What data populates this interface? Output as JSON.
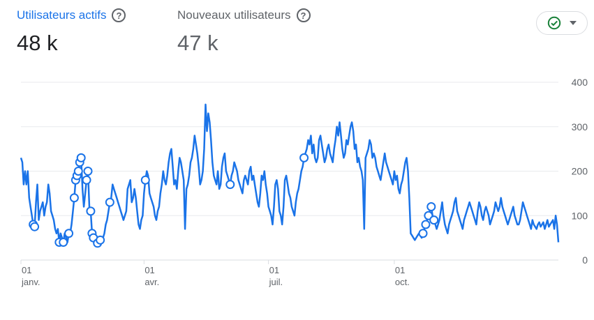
{
  "metrics": {
    "active": {
      "title": "Utilisateurs actifs",
      "value": "48 k"
    },
    "new": {
      "title": "Nouveaux utilisateurs",
      "value": "47 k"
    },
    "help_glyph": "?"
  },
  "status_button": {
    "icon": "check-circle-icon",
    "color": "#188038",
    "dropdown": "caret-down-icon"
  },
  "chart_data": {
    "type": "line",
    "ylim": [
      0,
      400
    ],
    "y_ticks": [
      "0",
      "100",
      "200",
      "300",
      "400"
    ],
    "x_ticks": [
      {
        "day": "01",
        "month": "janv.",
        "index": 0
      },
      {
        "day": "01",
        "month": "avr.",
        "index": 90
      },
      {
        "day": "01",
        "month": "juil.",
        "index": 181
      },
      {
        "day": "01",
        "month": "oct.",
        "index": 273
      }
    ],
    "color": "#1a73e8",
    "series": [
      {
        "values": [
          230,
          220,
          170,
          200,
          170,
          200,
          140,
          120,
          100,
          80,
          75,
          130,
          170,
          90,
          110,
          120,
          130,
          100,
          120,
          130,
          170,
          150,
          110,
          100,
          90,
          70,
          60,
          70,
          40,
          60,
          50,
          40,
          60,
          50,
          40,
          60,
          60,
          80,
          110,
          140,
          180,
          190,
          200,
          220,
          230,
          160,
          120,
          150,
          180,
          200,
          120,
          110,
          60,
          50,
          40,
          45,
          38,
          50,
          45,
          40,
          50,
          60,
          80,
          90,
          110,
          130,
          140,
          170,
          160,
          150,
          140,
          130,
          120,
          110,
          100,
          90,
          100,
          110,
          160,
          170,
          180,
          130,
          140,
          160,
          140,
          110,
          80,
          70,
          90,
          100,
          150,
          180,
          200,
          190,
          150,
          140,
          130,
          120,
          100,
          90,
          110,
          120,
          150,
          170,
          200,
          180,
          170,
          190,
          220,
          240,
          250,
          210,
          170,
          180,
          160,
          200,
          230,
          220,
          200,
          180,
          70,
          160,
          170,
          190,
          220,
          230,
          250,
          280,
          260,
          240,
          210,
          170,
          180,
          200,
          250,
          350,
          290,
          330,
          310,
          270,
          220,
          190,
          180,
          170,
          200,
          160,
          170,
          210,
          230,
          240,
          200,
          190,
          180,
          170,
          190,
          200,
          220,
          210,
          200,
          180,
          170,
          160,
          150,
          180,
          190,
          180,
          170,
          200,
          210,
          180,
          190,
          170,
          150,
          130,
          120,
          150,
          190,
          180,
          200,
          170,
          150,
          120,
          110,
          100,
          80,
          120,
          170,
          180,
          160,
          110,
          100,
          80,
          120,
          180,
          190,
          170,
          150,
          140,
          120,
          110,
          100,
          130,
          150,
          160,
          180,
          200,
          210,
          230,
          240,
          250,
          270,
          260,
          280,
          240,
          260,
          230,
          220,
          230,
          270,
          280,
          260,
          240,
          220,
          230,
          250,
          260,
          240,
          230,
          220,
          250,
          270,
          300,
          280,
          310,
          280,
          250,
          230,
          240,
          270,
          260,
          280,
          300,
          310,
          290,
          250,
          260,
          220,
          230,
          210,
          200,
          180,
          70,
          230,
          240,
          250,
          270,
          260,
          230,
          240,
          230,
          210,
          200,
          190,
          180,
          200,
          220,
          240,
          220,
          210,
          200,
          190,
          180,
          170,
          200,
          180,
          190,
          160,
          150,
          170,
          180,
          200,
          220,
          230,
          200,
          140,
          60,
          55,
          50,
          45,
          50,
          55,
          60,
          55,
          50,
          60,
          70,
          80,
          90,
          100,
          110,
          120,
          100,
          90,
          80,
          70,
          80,
          90,
          110,
          130,
          100,
          80,
          70,
          60,
          80,
          90,
          100,
          110,
          130,
          140,
          110,
          100,
          90,
          80,
          70,
          90,
          100,
          110,
          120,
          130,
          120,
          110,
          100,
          90,
          80,
          110,
          130,
          120,
          100,
          90,
          110,
          120,
          110,
          100,
          80,
          90,
          100,
          110,
          130,
          120,
          110,
          120,
          140,
          120,
          110,
          100,
          90,
          80,
          90,
          100,
          110,
          120,
          100,
          90,
          80,
          80,
          90,
          110,
          130,
          120,
          110,
          100,
          90,
          80,
          70,
          90,
          80,
          75,
          70,
          80,
          85,
          75,
          80,
          85,
          70,
          80,
          90,
          75,
          80,
          85,
          90,
          70,
          100,
          80,
          40
        ]
      }
    ],
    "anomalies": [
      9,
      10,
      28,
      31,
      35,
      39,
      40,
      41,
      42,
      43,
      44,
      48,
      49,
      51,
      52,
      53,
      56,
      58,
      65,
      91,
      153,
      207,
      294,
      296,
      298,
      300,
      302
    ]
  }
}
